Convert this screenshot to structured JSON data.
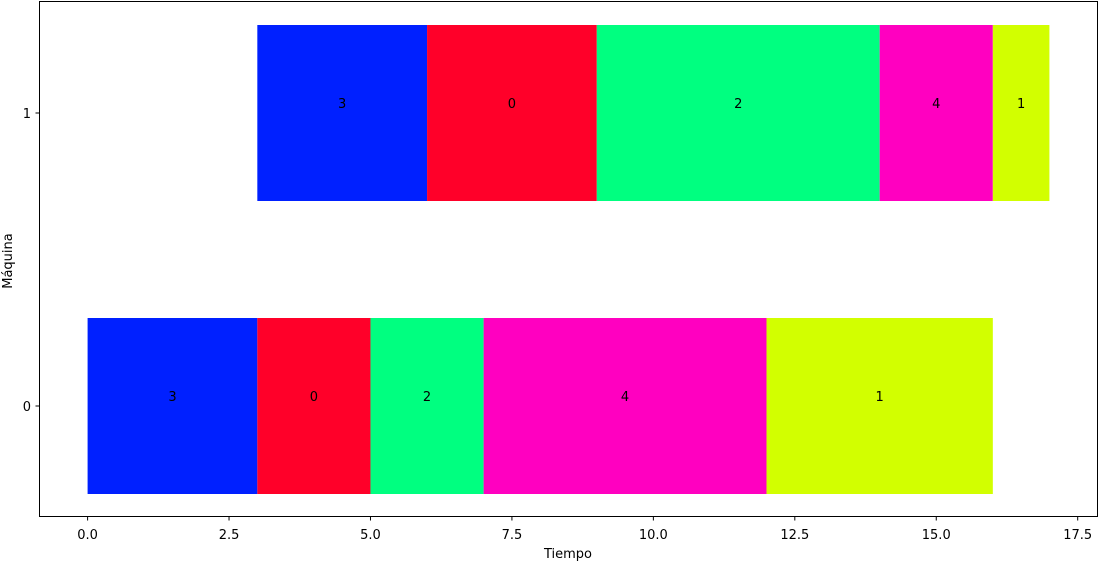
{
  "chart_data": {
    "type": "gantt",
    "xlabel": "Tiempo",
    "ylabel": "Máquina",
    "xlim": [
      -0.85,
      17.85
    ],
    "x_ticks": [
      "0.0",
      "2.5",
      "5.0",
      "7.5",
      "10.0",
      "12.5",
      "15.0",
      "17.5"
    ],
    "y_ticks": [
      "0",
      "1"
    ],
    "grid": false,
    "job_colors": {
      "0": "#ff0029",
      "1": "#d2ff00",
      "2": "#00ff80",
      "3": "#0020ff",
      "4": "#ff00c0"
    },
    "machines": [
      {
        "machine": "0",
        "tasks": [
          {
            "job": "3",
            "start": 0,
            "end": 3
          },
          {
            "job": "0",
            "start": 3,
            "end": 5
          },
          {
            "job": "2",
            "start": 5,
            "end": 7
          },
          {
            "job": "4",
            "start": 7,
            "end": 12
          },
          {
            "job": "1",
            "start": 12,
            "end": 16
          }
        ]
      },
      {
        "machine": "1",
        "tasks": [
          {
            "job": "3",
            "start": 3,
            "end": 6
          },
          {
            "job": "0",
            "start": 6,
            "end": 9
          },
          {
            "job": "2",
            "start": 9,
            "end": 14
          },
          {
            "job": "4",
            "start": 14,
            "end": 16
          },
          {
            "job": "1",
            "start": 16,
            "end": 17
          }
        ]
      }
    ]
  }
}
